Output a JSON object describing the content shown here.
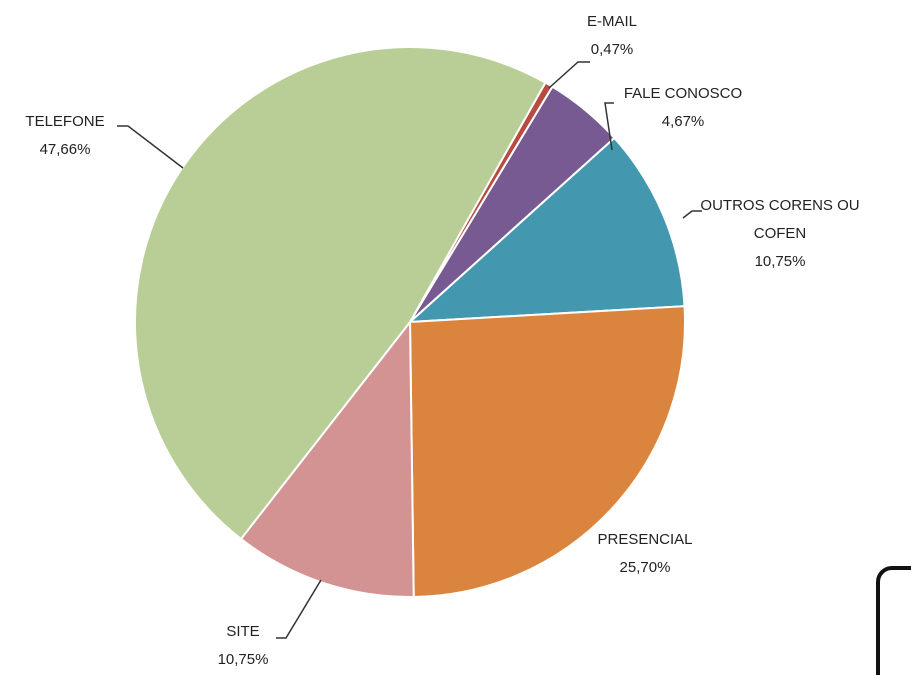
{
  "chart_data": {
    "type": "pie",
    "categories": [
      "E-MAIL",
      "FALE CONOSCO",
      "OUTROS CORENS  OU COFEN",
      "PRESENCIAL",
      "SITE",
      "TELEFONE"
    ],
    "values": [
      0.47,
      4.67,
      10.75,
      25.7,
      10.75,
      47.66
    ],
    "value_labels": [
      "0,47%",
      "4,67%",
      "10,75%",
      "25,70%",
      "10,75%",
      "47,66%"
    ],
    "colors": [
      "#b84b40",
      "#775a92",
      "#4398b0",
      "#db843d",
      "#d29392",
      "#b9cd96"
    ]
  }
}
